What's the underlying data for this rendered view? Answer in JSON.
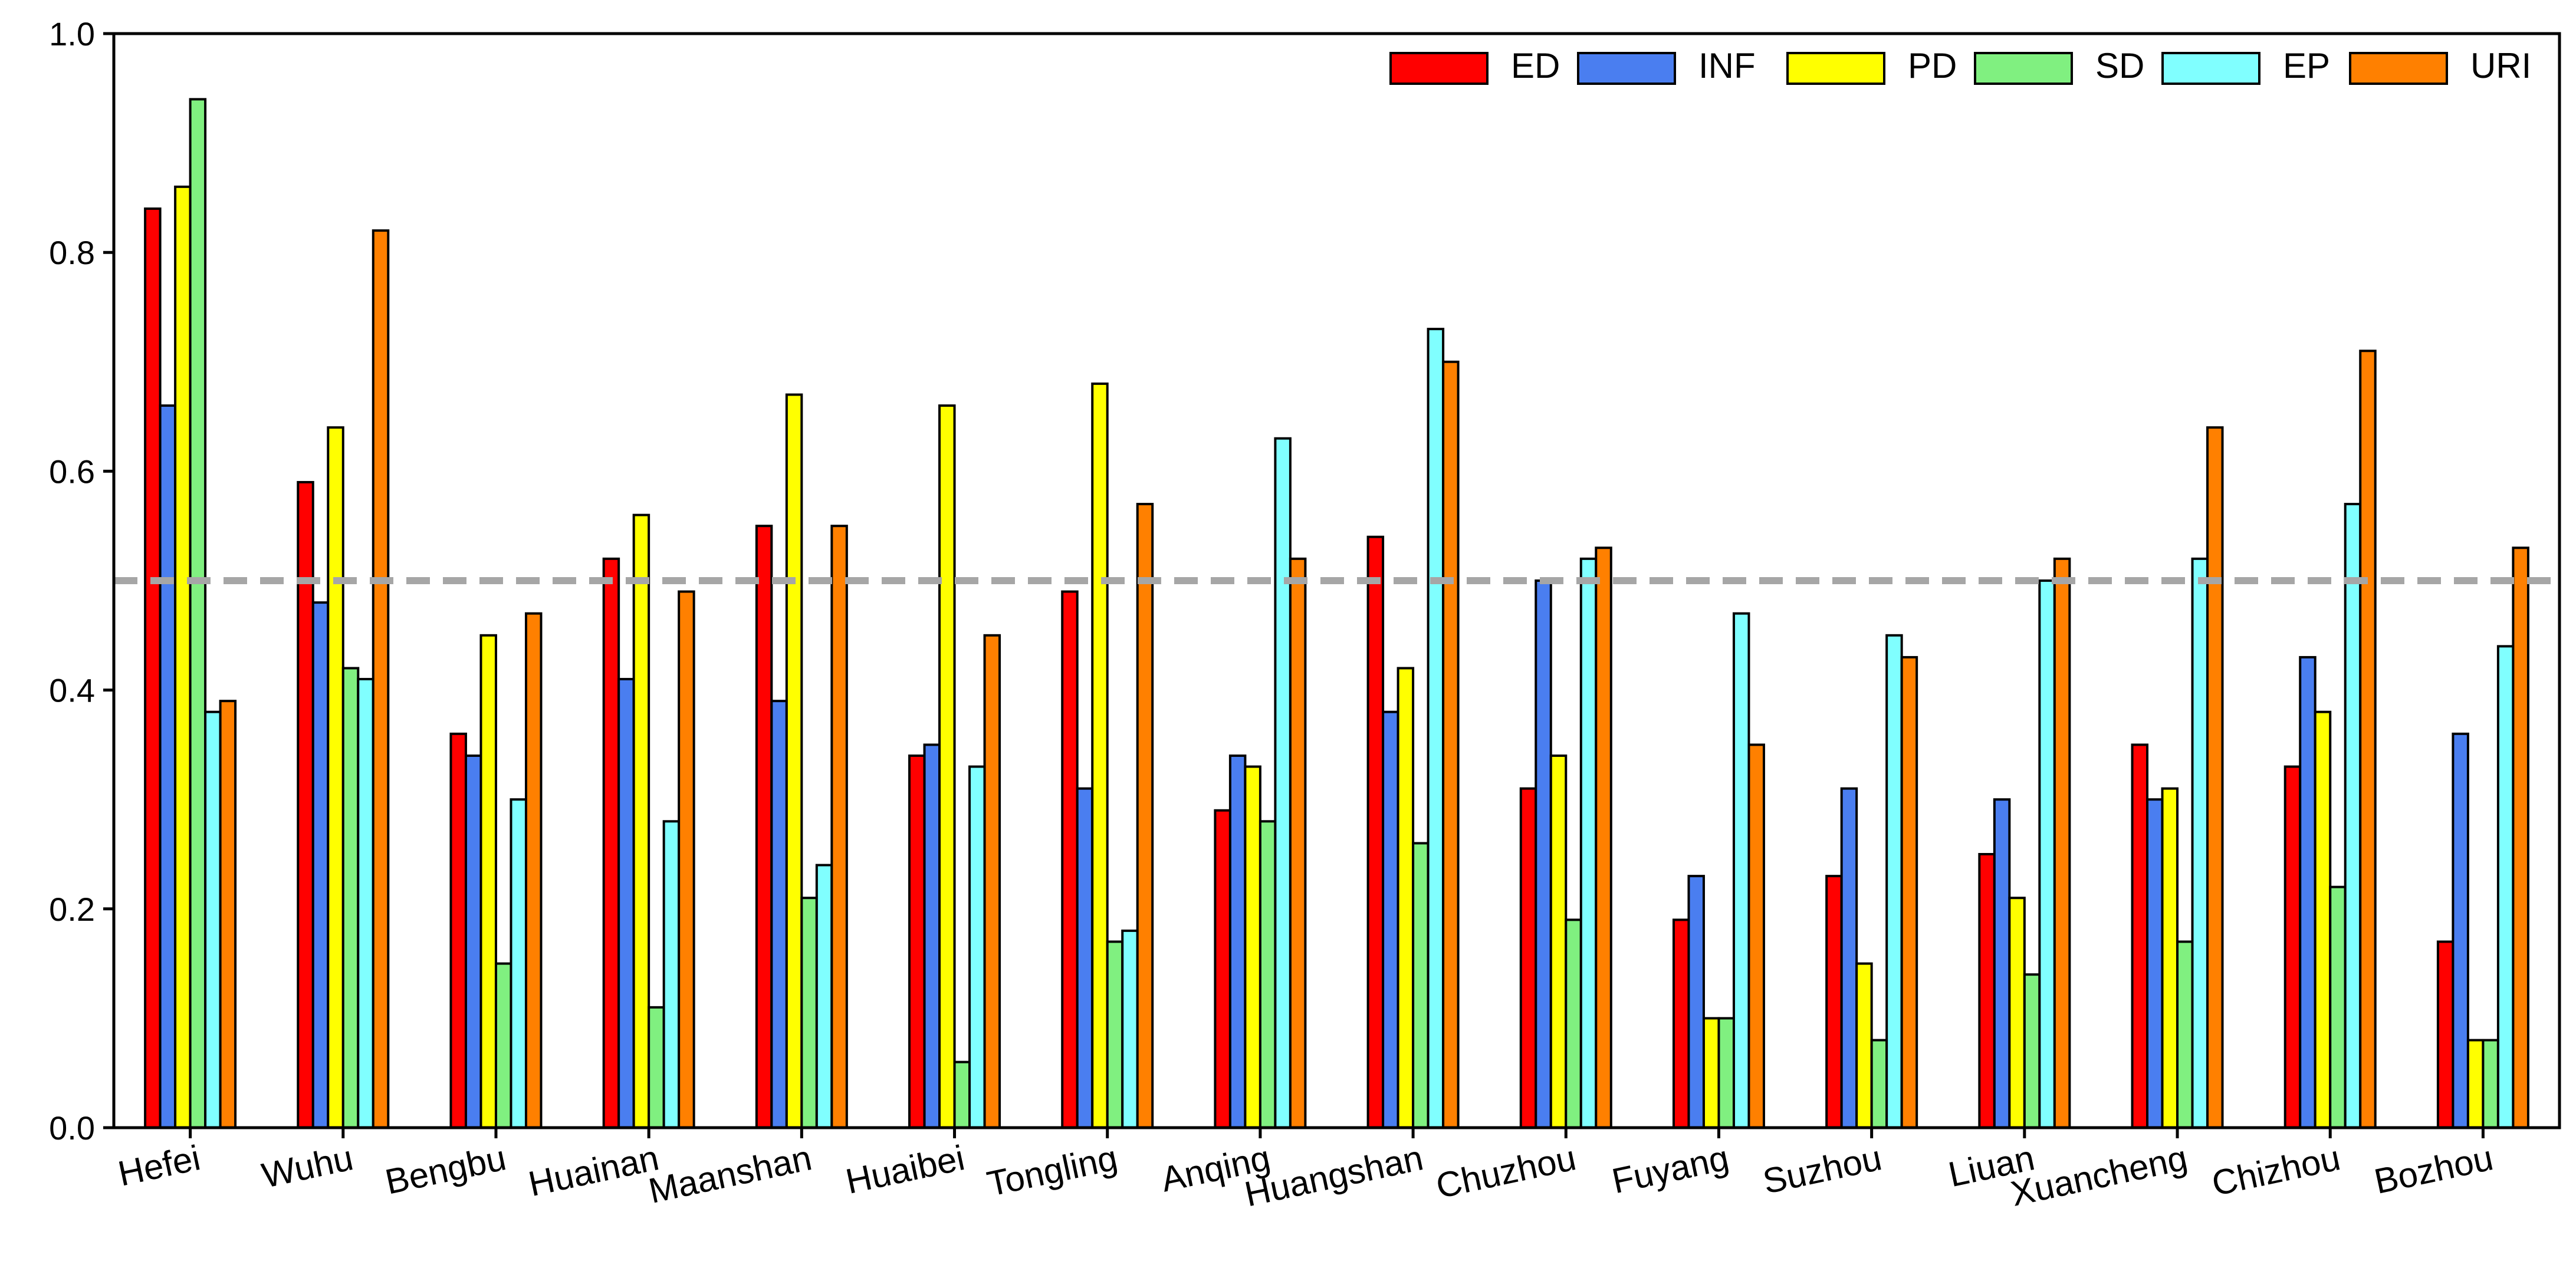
{
  "chart_data": {
    "type": "bar",
    "title": "",
    "xlabel": "",
    "ylabel": "",
    "ylim": [
      0,
      1.0
    ],
    "yticks": [
      "0.0",
      "0.2",
      "0.4",
      "0.6",
      "0.8",
      "1.0"
    ],
    "reference_line": 0.5,
    "legend_position": "top-right",
    "categories": [
      "Hefei",
      "Wuhu",
      "Bengbu",
      "Huainan",
      "Maanshan",
      "Huaibei",
      "Tongling",
      "Anqing",
      "Huangshan",
      "Chuzhou",
      "Fuyang",
      "Suzhou",
      "Liuan",
      "Xuancheng",
      "Chizhou",
      "Bozhou"
    ],
    "series": [
      {
        "name": "ED",
        "color": "#ff0000",
        "values": [
          0.84,
          0.59,
          0.36,
          0.52,
          0.55,
          0.34,
          0.49,
          0.29,
          0.54,
          0.31,
          0.19,
          0.23,
          0.25,
          0.35,
          0.33,
          0.17
        ]
      },
      {
        "name": "INF",
        "color": "#4a7ef0",
        "values": [
          0.66,
          0.48,
          0.34,
          0.41,
          0.39,
          0.35,
          0.31,
          0.34,
          0.38,
          0.5,
          0.23,
          0.31,
          0.3,
          0.3,
          0.43,
          0.36
        ]
      },
      {
        "name": "PD",
        "color": "#ffff00",
        "values": [
          0.86,
          0.64,
          0.45,
          0.56,
          0.67,
          0.66,
          0.68,
          0.33,
          0.42,
          0.34,
          0.1,
          0.15,
          0.21,
          0.31,
          0.38,
          0.08
        ]
      },
      {
        "name": "SD",
        "color": "#80f080",
        "values": [
          0.94,
          0.42,
          0.15,
          0.11,
          0.21,
          0.06,
          0.17,
          0.28,
          0.26,
          0.19,
          0.1,
          0.08,
          0.14,
          0.17,
          0.22,
          0.08
        ]
      },
      {
        "name": "EP",
        "color": "#80ffff",
        "values": [
          0.38,
          0.41,
          0.3,
          0.28,
          0.24,
          0.33,
          0.18,
          0.63,
          0.73,
          0.52,
          0.47,
          0.45,
          0.5,
          0.52,
          0.57,
          0.44
        ]
      },
      {
        "name": "URI",
        "color": "#ff8000",
        "values": [
          0.39,
          0.82,
          0.47,
          0.49,
          0.55,
          0.45,
          0.57,
          0.52,
          0.7,
          0.53,
          0.35,
          0.43,
          0.52,
          0.64,
          0.71,
          0.53
        ]
      }
    ]
  }
}
